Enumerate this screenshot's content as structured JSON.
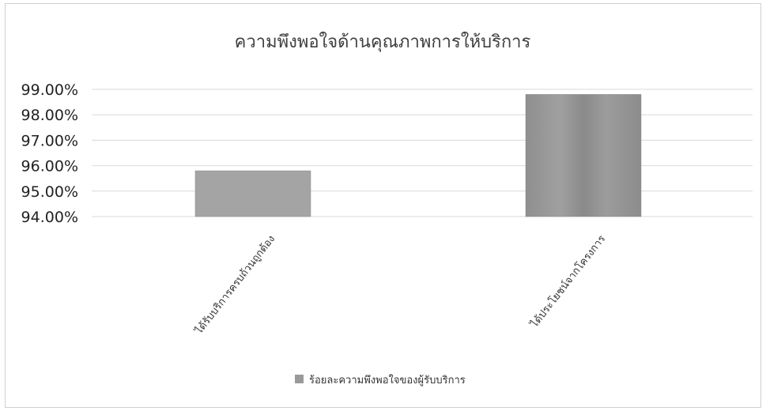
{
  "chart_data": {
    "type": "bar",
    "title": "ความพึงพอใจด้านคุณภาพการให้บริการ",
    "xlabel": "",
    "ylabel": "",
    "categories": [
      "ได้รับบริการครบถ้วนถูกต้อง",
      "ได้ประโยชน์จากโครงการ"
    ],
    "series": [
      {
        "name": "ร้อยละความพึงพอใจของผู้รับบริการ",
        "values": [
          95.8,
          98.8
        ],
        "color": "#9a9a9a"
      }
    ],
    "ylim": [
      94,
      99
    ],
    "yticks": [
      94,
      95,
      96,
      97,
      98,
      99
    ],
    "ytick_labels": [
      "94.00%",
      "95.00%",
      "96.00%",
      "97.00%",
      "98.00%",
      "99.00%"
    ],
    "grid": true,
    "legend_position": "bottom",
    "gridline_color": "#d9d9d9"
  }
}
